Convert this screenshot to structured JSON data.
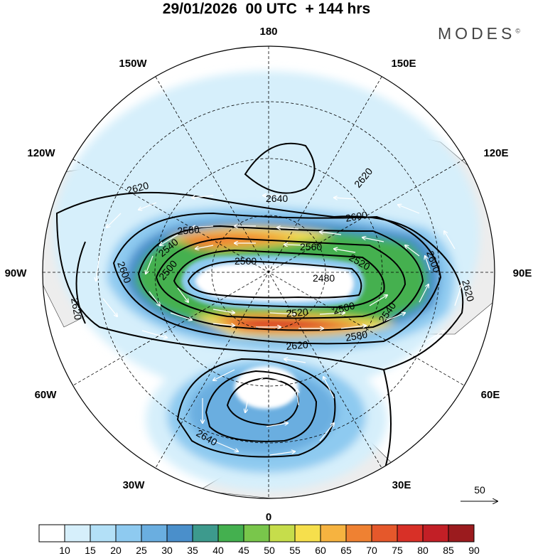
{
  "header": {
    "title": "29/01/2026  00 UTC  + 144 hrs",
    "brand": "MODES",
    "brand_mark": "©"
  },
  "map": {
    "projection": "north polar stereographic",
    "longitude_labels": [
      "180",
      "150E",
      "120E",
      "90E",
      "60E",
      "30E",
      "0",
      "30W",
      "60W",
      "90W",
      "120W",
      "150W"
    ],
    "contour_labels": [
      "2640",
      "2620",
      "2620",
      "2620",
      "2620",
      "2620",
      "2600",
      "2600",
      "2600",
      "2580",
      "2580",
      "2560",
      "2540",
      "2540",
      "2520",
      "2520",
      "2500",
      "2500",
      "2500",
      "2480",
      "2640"
    ],
    "wind_scale_label": "50"
  },
  "colorbar": {
    "labels": [
      "10",
      "15",
      "20",
      "25",
      "30",
      "35",
      "40",
      "45",
      "50",
      "55",
      "60",
      "65",
      "70",
      "75",
      "80",
      "85",
      "90"
    ],
    "colors": [
      "#ffffff",
      "#d6effb",
      "#b3e0f7",
      "#8ecaf0",
      "#6aaee0",
      "#4a8fcb",
      "#3d9a8d",
      "#44b04f",
      "#79c64b",
      "#c6dd4b",
      "#f6df4c",
      "#f6b340",
      "#ef8132",
      "#e5582b",
      "#d83027",
      "#c21f26",
      "#9b1b1e"
    ]
  }
}
